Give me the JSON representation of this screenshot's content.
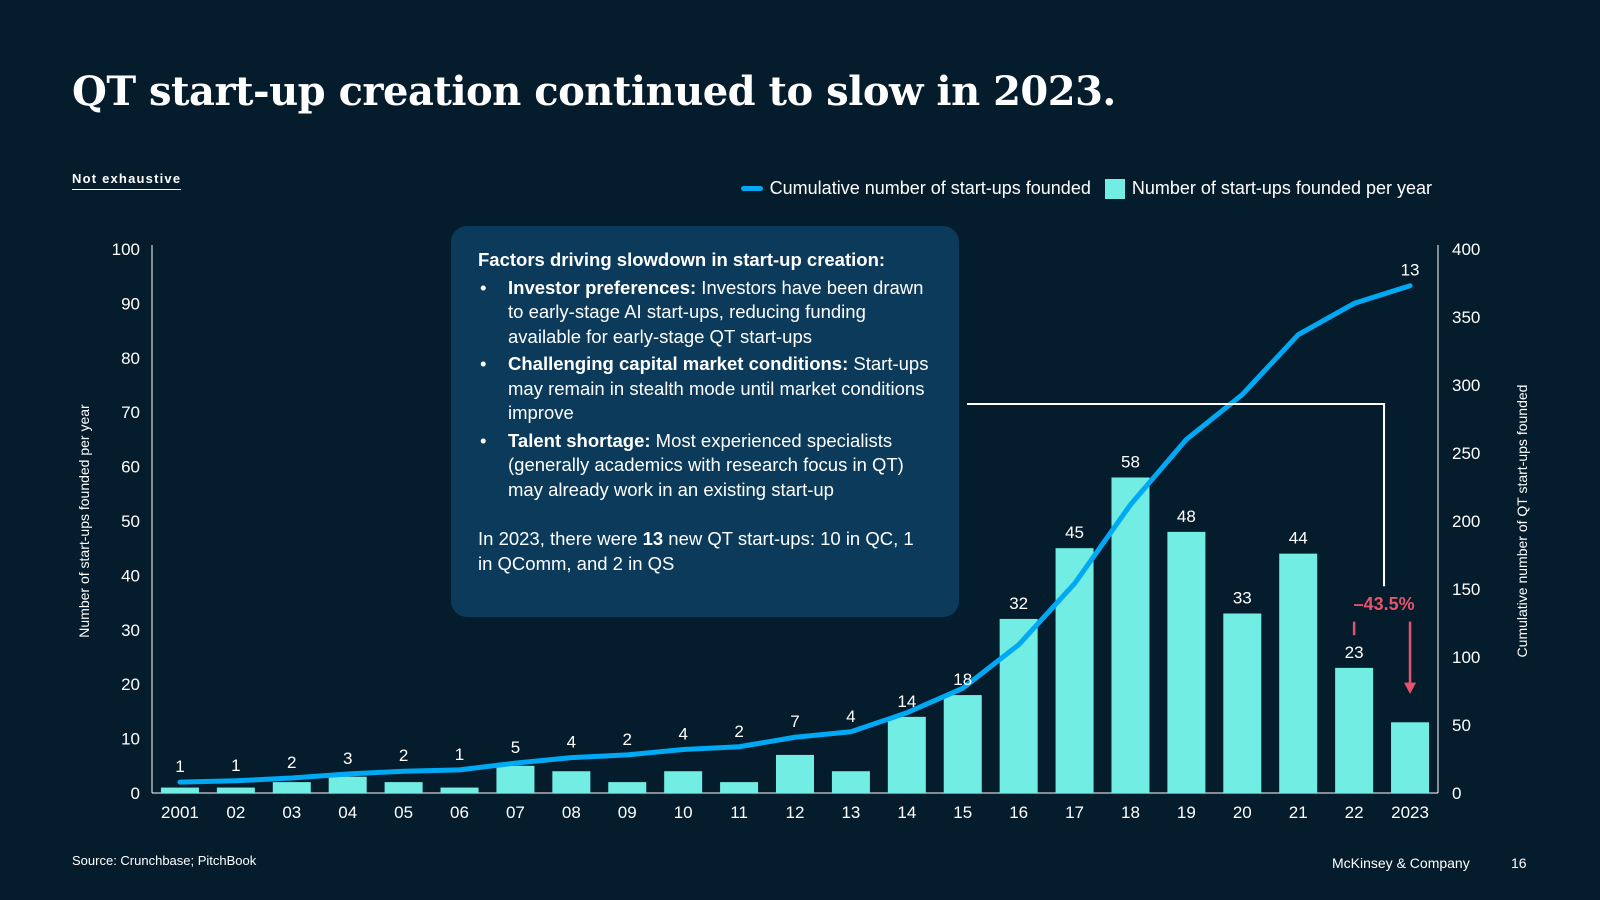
{
  "title": "QT start-up creation continued to slow in 2023.",
  "tag": "Not exhaustive",
  "legend": {
    "line_label": "Cumulative number of start-ups founded",
    "bar_label": "Number of start-ups founded per year"
  },
  "callout": {
    "title": "Factors driving slowdown in start-up creation:",
    "bullets": [
      {
        "bullet": "•",
        "label": "Investor preferences:",
        "text": " Investors have been drawn to early-stage AI start-ups, reducing funding available for early-stage QT start-ups"
      },
      {
        "bullet": "•",
        "label": "Challenging capital market conditions:",
        "text": " Start-ups may remain in stealth mode until market conditions improve"
      },
      {
        "bullet": "•",
        "label": "Talent shortage:",
        "text": " Most experienced specialists (generally academics with research focus in QT) may already work in an existing start-up"
      }
    ],
    "summary_pre": "In 2023, there were ",
    "summary_num": "13",
    "summary_post": " new QT start-ups: 10 in QC, 1 in QComm, and 2 in QS"
  },
  "source": "Source: Crunchbase; PitchBook",
  "footer": {
    "brand": "McKinsey & Company",
    "page": "16"
  },
  "chart_data": {
    "type": "bar",
    "categories": [
      "2001",
      "02",
      "03",
      "04",
      "05",
      "06",
      "07",
      "08",
      "09",
      "10",
      "11",
      "12",
      "13",
      "14",
      "15",
      "16",
      "17",
      "18",
      "19",
      "20",
      "21",
      "22",
      "2023"
    ],
    "series": [
      {
        "name": "Number of start-ups founded per year",
        "type": "bar",
        "axis": "left",
        "color": "#72ede3",
        "values": [
          1,
          1,
          2,
          3,
          2,
          1,
          5,
          4,
          2,
          4,
          2,
          7,
          4,
          14,
          18,
          32,
          45,
          58,
          48,
          33,
          44,
          23,
          13
        ]
      },
      {
        "name": "Cumulative number of start-ups founded",
        "type": "line",
        "axis": "right",
        "color": "#00a9f4",
        "values": [
          8,
          9,
          11,
          14,
          16,
          17,
          22,
          26,
          28,
          32,
          34,
          41,
          45,
          59,
          77,
          109,
          154,
          212,
          260,
          293,
          337,
          360,
          373
        ]
      }
    ],
    "ylabel": "Number of start-ups founded per year",
    "ylabel_right": "Cumulative number of QT start-ups founded",
    "ylim": [
      0,
      100
    ],
    "yticks": [
      0,
      10,
      20,
      30,
      40,
      50,
      60,
      70,
      80,
      90,
      100
    ],
    "ylim_right": [
      0,
      400
    ],
    "yticks_right": [
      0,
      50,
      100,
      150,
      200,
      250,
      300,
      350,
      400
    ],
    "annotation": {
      "text": "–43.5%",
      "from": "22",
      "to": "2023",
      "color": "#e5546c"
    }
  }
}
